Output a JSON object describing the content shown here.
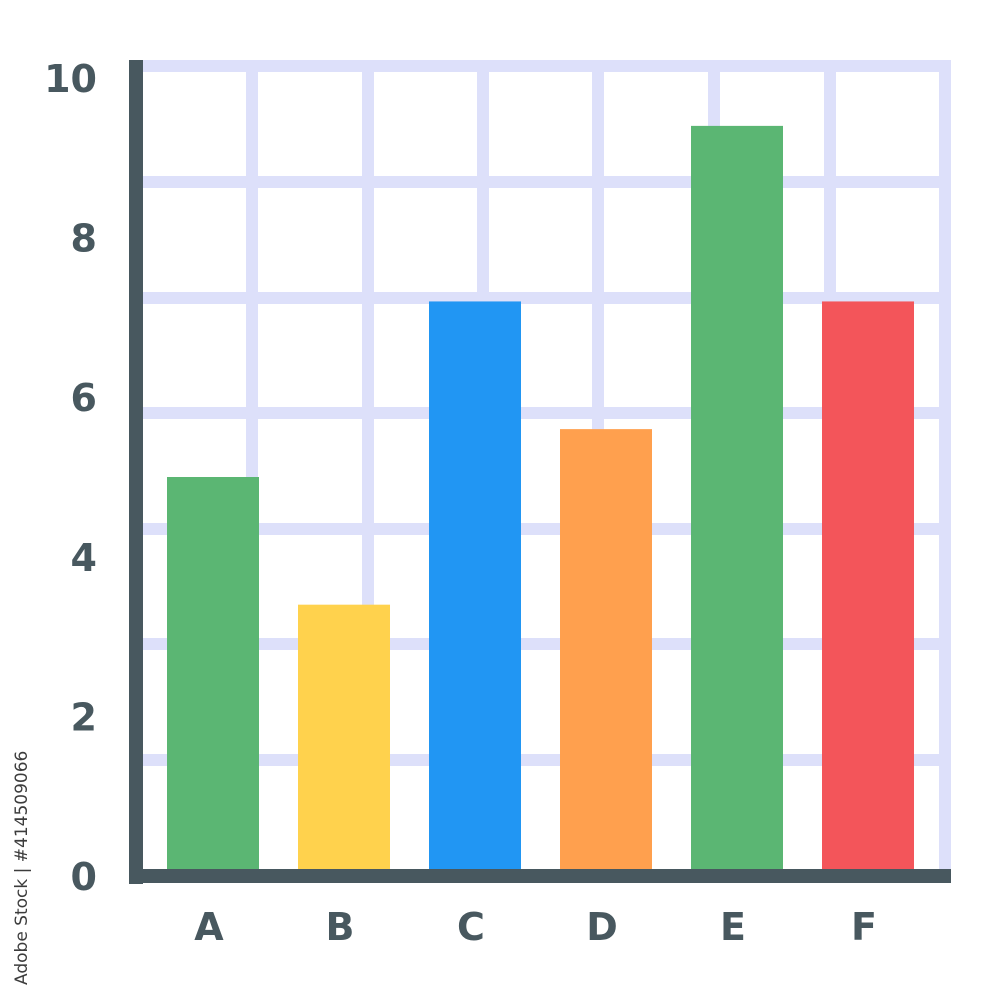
{
  "chart_data": {
    "type": "bar",
    "categories": [
      "A",
      "B",
      "C",
      "D",
      "E",
      "F"
    ],
    "values": [
      5,
      3.4,
      7.2,
      5.6,
      9.4,
      7.2
    ],
    "bar_colors": [
      "#5bb673",
      "#ffd24d",
      "#2196f3",
      "#ffa04e",
      "#5bb673",
      "#f3555a"
    ],
    "title": "",
    "xlabel": "",
    "ylabel": "",
    "ylim": [
      0,
      10
    ],
    "yticks": [
      "0",
      "2",
      "4",
      "6",
      "8",
      "10"
    ],
    "grid": true,
    "legend": "none"
  },
  "colors": {
    "axis": "#48585f",
    "grid": "#dde0fa",
    "label": "#48585f"
  },
  "stock_id": "Adobe Stock | #414509066"
}
